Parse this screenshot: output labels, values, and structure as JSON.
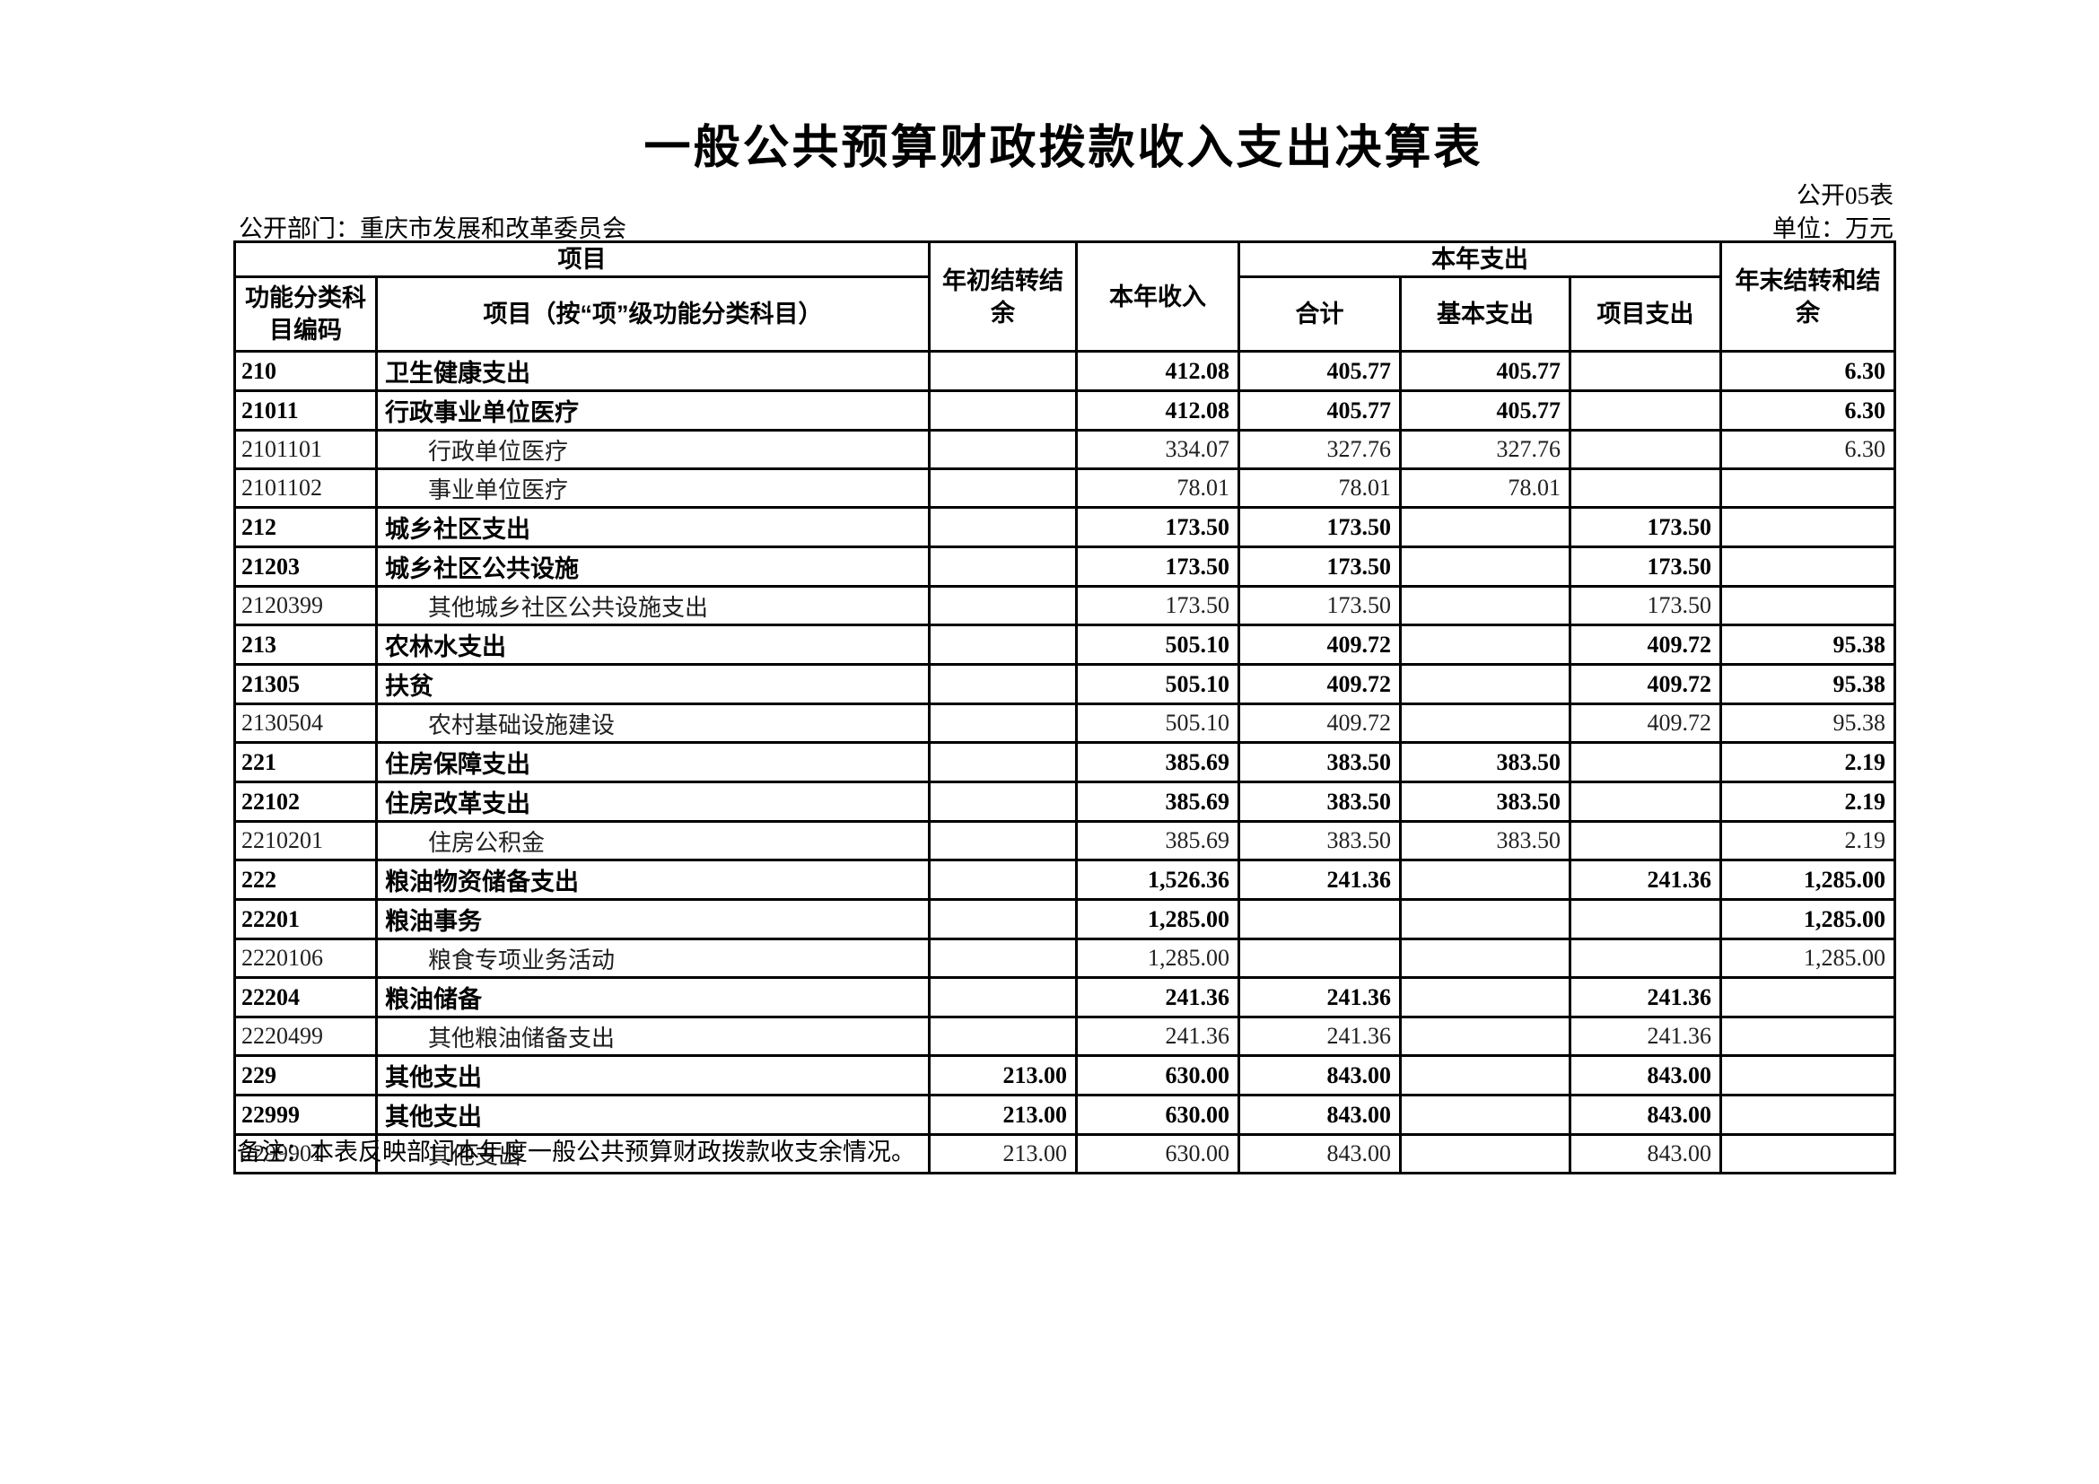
{
  "page": {
    "title": "一般公共预算财政拨款收入支出决算表",
    "form_no": "公开05表",
    "unit": "单位：万元",
    "department": "公开部门：重庆市发展和改革委员会",
    "note": "备注：本表反映部门本年度一般公共预算财政拨款收支余情况。"
  },
  "table": {
    "header": {
      "project_group": "项目",
      "code": "功能分类科目编码",
      "project_item": "项目（按“项”级功能分类科目）",
      "opening_balance": "年初结转结余",
      "current_income": "本年收入",
      "current_expenditure_group": "本年支出",
      "total": "合计",
      "basic_expenditure": "基本支出",
      "project_expenditure": "项目支出",
      "closing_balance": "年末结转和结余"
    },
    "value_columns": [
      "年初结转结余",
      "本年收入",
      "合计",
      "基本支出",
      "项目支出",
      "年末结转和结余"
    ],
    "rows": [
      {
        "code": "210",
        "name": "卫生健康支出",
        "level": "summary",
        "values": [
          "",
          "412.08",
          "405.77",
          "405.77",
          "",
          "6.30"
        ]
      },
      {
        "code": "21011",
        "name": "行政事业单位医疗",
        "level": "summary",
        "values": [
          "",
          "412.08",
          "405.77",
          "405.77",
          "",
          "6.30"
        ]
      },
      {
        "code": "2101101",
        "name": "行政单位医疗",
        "level": "detail",
        "values": [
          "",
          "334.07",
          "327.76",
          "327.76",
          "",
          "6.30"
        ]
      },
      {
        "code": "2101102",
        "name": "事业单位医疗",
        "level": "detail",
        "values": [
          "",
          "78.01",
          "78.01",
          "78.01",
          "",
          ""
        ]
      },
      {
        "code": "212",
        "name": "城乡社区支出",
        "level": "summary",
        "values": [
          "",
          "173.50",
          "173.50",
          "",
          "173.50",
          ""
        ]
      },
      {
        "code": "21203",
        "name": "城乡社区公共设施",
        "level": "summary",
        "values": [
          "",
          "173.50",
          "173.50",
          "",
          "173.50",
          ""
        ]
      },
      {
        "code": "2120399",
        "name": "其他城乡社区公共设施支出",
        "level": "detail",
        "values": [
          "",
          "173.50",
          "173.50",
          "",
          "173.50",
          ""
        ]
      },
      {
        "code": "213",
        "name": "农林水支出",
        "level": "summary",
        "values": [
          "",
          "505.10",
          "409.72",
          "",
          "409.72",
          "95.38"
        ]
      },
      {
        "code": "21305",
        "name": "扶贫",
        "level": "summary",
        "values": [
          "",
          "505.10",
          "409.72",
          "",
          "409.72",
          "95.38"
        ]
      },
      {
        "code": "2130504",
        "name": "农村基础设施建设",
        "level": "detail",
        "values": [
          "",
          "505.10",
          "409.72",
          "",
          "409.72",
          "95.38"
        ]
      },
      {
        "code": "221",
        "name": "住房保障支出",
        "level": "summary",
        "values": [
          "",
          "385.69",
          "383.50",
          "383.50",
          "",
          "2.19"
        ]
      },
      {
        "code": "22102",
        "name": "住房改革支出",
        "level": "summary",
        "values": [
          "",
          "385.69",
          "383.50",
          "383.50",
          "",
          "2.19"
        ]
      },
      {
        "code": "2210201",
        "name": "住房公积金",
        "level": "detail",
        "values": [
          "",
          "385.69",
          "383.50",
          "383.50",
          "",
          "2.19"
        ]
      },
      {
        "code": "222",
        "name": "粮油物资储备支出",
        "level": "summary",
        "values": [
          "",
          "1,526.36",
          "241.36",
          "",
          "241.36",
          "1,285.00"
        ]
      },
      {
        "code": "22201",
        "name": "粮油事务",
        "level": "summary",
        "values": [
          "",
          "1,285.00",
          "",
          "",
          "",
          "1,285.00"
        ]
      },
      {
        "code": "2220106",
        "name": "粮食专项业务活动",
        "level": "detail",
        "values": [
          "",
          "1,285.00",
          "",
          "",
          "",
          "1,285.00"
        ]
      },
      {
        "code": "22204",
        "name": "粮油储备",
        "level": "summary",
        "values": [
          "",
          "241.36",
          "241.36",
          "",
          "241.36",
          ""
        ]
      },
      {
        "code": "2220499",
        "name": "其他粮油储备支出",
        "level": "detail",
        "values": [
          "",
          "241.36",
          "241.36",
          "",
          "241.36",
          ""
        ]
      },
      {
        "code": "229",
        "name": "其他支出",
        "level": "summary",
        "values": [
          "213.00",
          "630.00",
          "843.00",
          "",
          "843.00",
          ""
        ]
      },
      {
        "code": "22999",
        "name": "其他支出",
        "level": "summary",
        "values": [
          "213.00",
          "630.00",
          "843.00",
          "",
          "843.00",
          ""
        ]
      },
      {
        "code": "2299901",
        "name": "其他支出",
        "level": "detail",
        "values": [
          "213.00",
          "630.00",
          "843.00",
          "",
          "843.00",
          ""
        ]
      }
    ]
  }
}
